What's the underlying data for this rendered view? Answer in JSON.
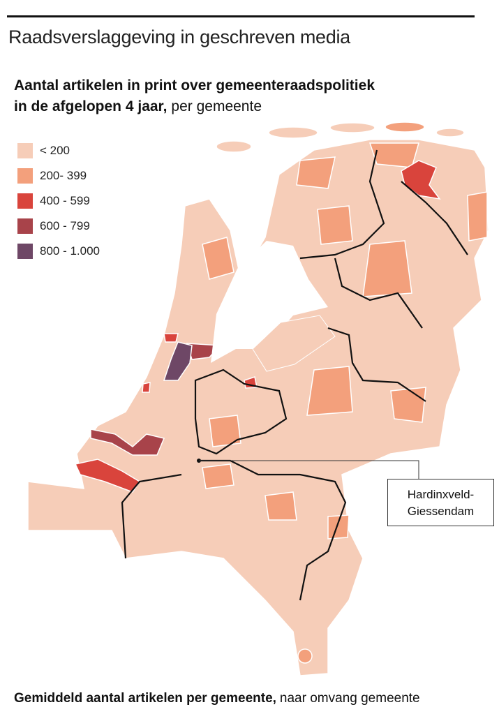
{
  "header": {
    "title": "Raadsverslaggeving in geschreven media"
  },
  "subtitle": {
    "bold_lines": [
      "Aantal artikelen in print over gemeenteraadspolitiek",
      "in de afgelopen 4 jaar,"
    ],
    "regular": "per gemeente"
  },
  "legend": [
    {
      "label": "< 200",
      "color": "#f6cdb8"
    },
    {
      "label": "200- 399",
      "color": "#f3a07c"
    },
    {
      "label": "400 - 599",
      "color": "#d9443c"
    },
    {
      "label": "600 - 799",
      "color": "#a8434a"
    },
    {
      "label": "800 - 1.000",
      "color": "#6e4766"
    }
  ],
  "annotation": {
    "lines": [
      "Hardinxveld-",
      "Giessendam"
    ]
  },
  "footer": {
    "bold": "Gemiddeld aantal artikelen per gemeente,",
    "regular": "naar omvang gemeente"
  }
}
